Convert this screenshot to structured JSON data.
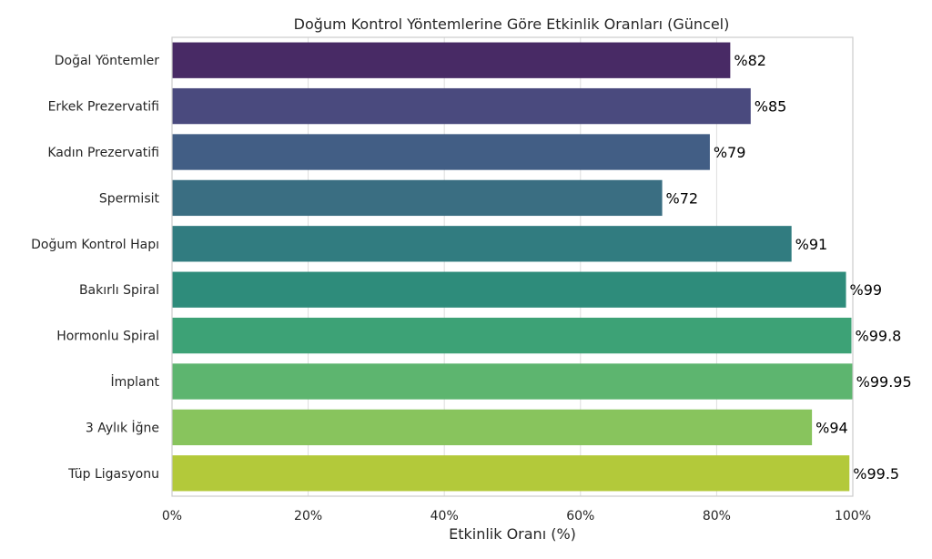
{
  "chart_data": {
    "type": "bar",
    "orientation": "horizontal",
    "title": "Doğum Kontrol Yöntemlerine Göre Etkinlik Oranları (Güncel)",
    "xlabel": "Etkinlik Oranı (%)",
    "ylabel": "",
    "xlim": [
      0,
      100
    ],
    "xticks": [
      0,
      20,
      40,
      60,
      80,
      100
    ],
    "xtick_labels": [
      "0%",
      "20%",
      "40%",
      "60%",
      "80%",
      "100%"
    ],
    "grid": true,
    "categories": [
      "Doğal Yöntemler",
      "Erkek Prezervatifi",
      "Kadın Prezervatifi",
      "Spermisit",
      "Doğum Kontrol Hapı",
      "Bakırlı Spiral",
      "Hormonlu Spiral",
      "İmplant",
      "3 Aylık İğne",
      "Tüp Ligasyonu"
    ],
    "values": [
      82,
      85,
      79,
      72,
      91,
      99,
      99.8,
      99.95,
      94,
      99.5
    ],
    "data_labels": [
      "%82",
      "%85",
      "%79",
      "%72",
      "%91",
      "%99",
      "%99.8",
      "%99.95",
      "%94",
      "%99.5"
    ],
    "colors": [
      "#482a65",
      "#4a4a7e",
      "#425e85",
      "#3a6e82",
      "#317c80",
      "#2e8c7b",
      "#3da276",
      "#5db56f",
      "#88c45d",
      "#b3c93a"
    ]
  }
}
